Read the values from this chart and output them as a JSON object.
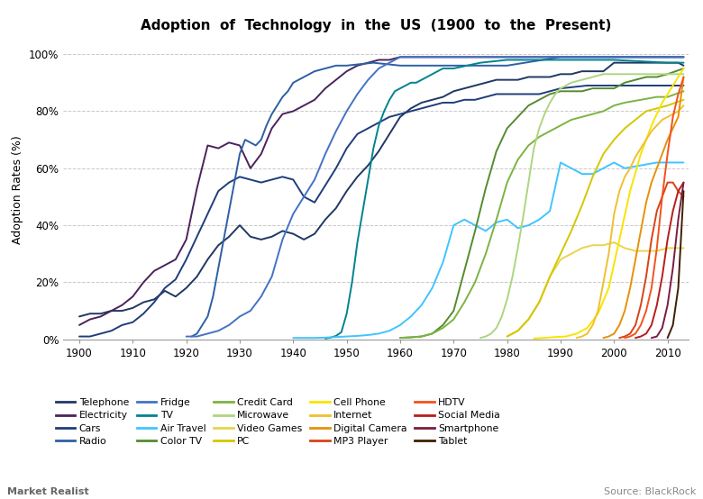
{
  "title": "Adoption  of  Technology  in  the  US  (1900  to  the  Present)",
  "ylabel": "Adoption Rates (%)",
  "xlim": [
    1897,
    2014
  ],
  "ylim": [
    0,
    1.05
  ],
  "yticks": [
    0,
    0.2,
    0.4,
    0.6,
    0.8,
    1.0
  ],
  "xticks": [
    1900,
    1910,
    1920,
    1930,
    1940,
    1950,
    1960,
    1970,
    1980,
    1990,
    2000,
    2010
  ],
  "background_color": "#ffffff",
  "grid_color": "#bbbbbb",
  "technologies": [
    {
      "name": "Telephone",
      "color": "#1f3864",
      "data_x": [
        1900,
        1902,
        1904,
        1906,
        1908,
        1910,
        1912,
        1914,
        1916,
        1918,
        1920,
        1922,
        1924,
        1926,
        1928,
        1930,
        1932,
        1934,
        1936,
        1938,
        1940,
        1942,
        1944,
        1946,
        1948,
        1950,
        1952,
        1954,
        1956,
        1958,
        1960,
        1962,
        1964,
        1966,
        1968,
        1970,
        1972,
        1974,
        1976,
        1978,
        1980,
        1982,
        1984,
        1986,
        1988,
        1990,
        1992,
        1994,
        1996,
        1998,
        2000,
        2002,
        2004,
        2006,
        2008,
        2010,
        2012,
        2013
      ],
      "data_y": [
        0.08,
        0.09,
        0.09,
        0.1,
        0.1,
        0.11,
        0.13,
        0.14,
        0.17,
        0.15,
        0.18,
        0.22,
        0.28,
        0.33,
        0.36,
        0.4,
        0.36,
        0.35,
        0.36,
        0.38,
        0.37,
        0.35,
        0.37,
        0.42,
        0.46,
        0.52,
        0.57,
        0.61,
        0.66,
        0.72,
        0.78,
        0.81,
        0.83,
        0.84,
        0.85,
        0.87,
        0.88,
        0.89,
        0.9,
        0.91,
        0.91,
        0.91,
        0.92,
        0.92,
        0.92,
        0.93,
        0.93,
        0.94,
        0.94,
        0.94,
        0.97,
        0.97,
        0.97,
        0.97,
        0.97,
        0.97,
        0.97,
        0.96
      ]
    },
    {
      "name": "Electricity",
      "color": "#4a235a",
      "data_x": [
        1900,
        1902,
        1904,
        1906,
        1908,
        1910,
        1912,
        1914,
        1916,
        1918,
        1920,
        1922,
        1924,
        1926,
        1928,
        1930,
        1932,
        1934,
        1936,
        1938,
        1940,
        1942,
        1944,
        1946,
        1948,
        1950,
        1952,
        1954,
        1956,
        1958,
        1960,
        1965,
        1970,
        1980,
        2013
      ],
      "data_y": [
        0.05,
        0.07,
        0.08,
        0.1,
        0.12,
        0.15,
        0.2,
        0.24,
        0.26,
        0.28,
        0.35,
        0.53,
        0.68,
        0.67,
        0.69,
        0.68,
        0.6,
        0.65,
        0.74,
        0.79,
        0.8,
        0.82,
        0.84,
        0.88,
        0.91,
        0.94,
        0.96,
        0.97,
        0.98,
        0.98,
        0.99,
        0.99,
        0.99,
        0.99,
        0.99
      ]
    },
    {
      "name": "Cars",
      "color": "#1f3d7a",
      "data_x": [
        1900,
        1902,
        1904,
        1906,
        1908,
        1910,
        1912,
        1914,
        1916,
        1918,
        1920,
        1922,
        1924,
        1926,
        1928,
        1930,
        1932,
        1934,
        1936,
        1938,
        1940,
        1942,
        1944,
        1946,
        1948,
        1950,
        1952,
        1954,
        1956,
        1958,
        1960,
        1962,
        1964,
        1966,
        1968,
        1970,
        1972,
        1974,
        1976,
        1978,
        1980,
        1982,
        1984,
        1986,
        1988,
        1990,
        1995,
        2000,
        2005,
        2010,
        2013
      ],
      "data_y": [
        0.01,
        0.01,
        0.02,
        0.03,
        0.05,
        0.06,
        0.09,
        0.13,
        0.18,
        0.21,
        0.28,
        0.36,
        0.44,
        0.52,
        0.55,
        0.57,
        0.56,
        0.55,
        0.56,
        0.57,
        0.56,
        0.5,
        0.48,
        0.54,
        0.6,
        0.67,
        0.72,
        0.74,
        0.76,
        0.78,
        0.79,
        0.8,
        0.81,
        0.82,
        0.83,
        0.83,
        0.84,
        0.84,
        0.85,
        0.86,
        0.86,
        0.86,
        0.86,
        0.86,
        0.87,
        0.88,
        0.89,
        0.89,
        0.89,
        0.89,
        0.89
      ]
    },
    {
      "name": "Radio",
      "color": "#2e5fa3",
      "data_x": [
        1921,
        1922,
        1923,
        1924,
        1925,
        1926,
        1927,
        1928,
        1929,
        1930,
        1931,
        1932,
        1933,
        1934,
        1935,
        1936,
        1937,
        1938,
        1939,
        1940,
        1942,
        1944,
        1946,
        1948,
        1950,
        1955,
        1960,
        1970,
        1980,
        1990,
        2000,
        2010,
        2013
      ],
      "data_y": [
        0.01,
        0.02,
        0.05,
        0.08,
        0.15,
        0.25,
        0.35,
        0.45,
        0.55,
        0.65,
        0.7,
        0.69,
        0.68,
        0.7,
        0.75,
        0.79,
        0.82,
        0.85,
        0.87,
        0.9,
        0.92,
        0.94,
        0.95,
        0.96,
        0.96,
        0.97,
        0.96,
        0.96,
        0.96,
        0.99,
        0.99,
        0.99,
        0.99
      ]
    },
    {
      "name": "Fridge",
      "color": "#4472c4",
      "data_x": [
        1920,
        1922,
        1924,
        1926,
        1928,
        1930,
        1932,
        1934,
        1936,
        1938,
        1940,
        1942,
        1944,
        1946,
        1948,
        1950,
        1952,
        1954,
        1956,
        1958,
        1960,
        1965,
        1970,
        1975,
        1980,
        1990,
        2000,
        2013
      ],
      "data_y": [
        0.01,
        0.01,
        0.02,
        0.03,
        0.05,
        0.08,
        0.1,
        0.15,
        0.22,
        0.35,
        0.44,
        0.5,
        0.56,
        0.65,
        0.73,
        0.8,
        0.86,
        0.91,
        0.95,
        0.97,
        0.99,
        0.99,
        0.99,
        0.99,
        0.99,
        0.99,
        0.99,
        0.99
      ]
    },
    {
      "name": "TV",
      "color": "#00838f",
      "data_x": [
        1946,
        1947,
        1948,
        1949,
        1950,
        1951,
        1952,
        1953,
        1954,
        1955,
        1956,
        1957,
        1958,
        1959,
        1960,
        1961,
        1962,
        1963,
        1964,
        1965,
        1966,
        1967,
        1968,
        1969,
        1970,
        1975,
        1980,
        1990,
        2000,
        2010,
        2013
      ],
      "data_y": [
        0.003,
        0.006,
        0.012,
        0.025,
        0.09,
        0.2,
        0.34,
        0.45,
        0.56,
        0.67,
        0.75,
        0.8,
        0.84,
        0.87,
        0.88,
        0.89,
        0.9,
        0.9,
        0.91,
        0.92,
        0.93,
        0.94,
        0.95,
        0.95,
        0.95,
        0.97,
        0.98,
        0.98,
        0.98,
        0.97,
        0.97
      ]
    },
    {
      "name": "Air Travel",
      "color": "#40c4ff",
      "data_x": [
        1940,
        1942,
        1944,
        1946,
        1948,
        1950,
        1952,
        1954,
        1956,
        1958,
        1960,
        1962,
        1964,
        1966,
        1968,
        1970,
        1972,
        1974,
        1976,
        1978,
        1980,
        1982,
        1984,
        1986,
        1988,
        1990,
        1992,
        1994,
        1996,
        1998,
        2000,
        2002,
        2005,
        2008,
        2010,
        2013
      ],
      "data_y": [
        0.005,
        0.005,
        0.005,
        0.006,
        0.008,
        0.01,
        0.012,
        0.015,
        0.02,
        0.03,
        0.05,
        0.08,
        0.12,
        0.18,
        0.27,
        0.4,
        0.42,
        0.4,
        0.38,
        0.41,
        0.42,
        0.39,
        0.4,
        0.42,
        0.45,
        0.62,
        0.6,
        0.58,
        0.58,
        0.6,
        0.62,
        0.6,
        0.61,
        0.62,
        0.62,
        0.62
      ]
    },
    {
      "name": "Color TV",
      "color": "#558b2f",
      "data_x": [
        1960,
        1962,
        1964,
        1966,
        1968,
        1970,
        1972,
        1974,
        1976,
        1978,
        1980,
        1982,
        1984,
        1986,
        1988,
        1990,
        1992,
        1994,
        1996,
        1998,
        2000,
        2002,
        2004,
        2006,
        2008,
        2010,
        2013
      ],
      "data_y": [
        0.005,
        0.007,
        0.01,
        0.02,
        0.05,
        0.1,
        0.24,
        0.38,
        0.53,
        0.66,
        0.74,
        0.78,
        0.82,
        0.84,
        0.86,
        0.87,
        0.87,
        0.87,
        0.88,
        0.88,
        0.88,
        0.9,
        0.91,
        0.92,
        0.92,
        0.93,
        0.95
      ]
    },
    {
      "name": "Credit Card",
      "color": "#7cb342",
      "data_x": [
        1960,
        1962,
        1964,
        1966,
        1968,
        1970,
        1972,
        1974,
        1976,
        1978,
        1980,
        1982,
        1984,
        1986,
        1988,
        1990,
        1992,
        1994,
        1996,
        1998,
        2000,
        2002,
        2005,
        2008,
        2010,
        2013
      ],
      "data_y": [
        0.005,
        0.007,
        0.01,
        0.02,
        0.04,
        0.07,
        0.13,
        0.2,
        0.3,
        0.42,
        0.55,
        0.63,
        0.68,
        0.71,
        0.73,
        0.75,
        0.77,
        0.78,
        0.79,
        0.8,
        0.82,
        0.83,
        0.84,
        0.85,
        0.85,
        0.87
      ]
    },
    {
      "name": "Microwave",
      "color": "#aed581",
      "data_x": [
        1975,
        1976,
        1977,
        1978,
        1979,
        1980,
        1981,
        1982,
        1983,
        1984,
        1985,
        1986,
        1987,
        1988,
        1989,
        1990,
        1992,
        1994,
        1996,
        1998,
        2000,
        2005,
        2010,
        2013
      ],
      "data_y": [
        0.005,
        0.01,
        0.02,
        0.04,
        0.08,
        0.14,
        0.22,
        0.32,
        0.43,
        0.55,
        0.67,
        0.74,
        0.79,
        0.83,
        0.86,
        0.88,
        0.9,
        0.91,
        0.92,
        0.93,
        0.93,
        0.93,
        0.93,
        0.93
      ]
    },
    {
      "name": "Video Games",
      "color": "#e8d44d",
      "data_x": [
        1980,
        1982,
        1984,
        1986,
        1988,
        1990,
        1992,
        1994,
        1996,
        1998,
        2000,
        2002,
        2004,
        2006,
        2008,
        2010,
        2013
      ],
      "data_y": [
        0.01,
        0.03,
        0.07,
        0.13,
        0.22,
        0.28,
        0.3,
        0.32,
        0.33,
        0.33,
        0.34,
        0.32,
        0.31,
        0.31,
        0.31,
        0.32,
        0.32
      ]
    },
    {
      "name": "PC",
      "color": "#d4c700",
      "data_x": [
        1980,
        1982,
        1984,
        1986,
        1988,
        1990,
        1992,
        1994,
        1996,
        1998,
        2000,
        2002,
        2004,
        2006,
        2008,
        2010,
        2013
      ],
      "data_y": [
        0.01,
        0.03,
        0.07,
        0.13,
        0.22,
        0.3,
        0.38,
        0.47,
        0.57,
        0.65,
        0.7,
        0.74,
        0.77,
        0.8,
        0.81,
        0.82,
        0.84
      ]
    },
    {
      "name": "Cell Phone",
      "color": "#f9e400",
      "data_x": [
        1985,
        1987,
        1989,
        1991,
        1993,
        1995,
        1997,
        1999,
        2001,
        2003,
        2005,
        2007,
        2009,
        2011,
        2013
      ],
      "data_y": [
        0.003,
        0.005,
        0.008,
        0.01,
        0.02,
        0.04,
        0.09,
        0.18,
        0.35,
        0.52,
        0.65,
        0.75,
        0.83,
        0.89,
        0.95
      ]
    },
    {
      "name": "Internet",
      "color": "#f0c030",
      "data_x": [
        1993,
        1994,
        1995,
        1996,
        1997,
        1998,
        1999,
        2000,
        2001,
        2002,
        2003,
        2004,
        2005,
        2006,
        2007,
        2008,
        2009,
        2010,
        2011,
        2012,
        2013
      ],
      "data_y": [
        0.005,
        0.01,
        0.02,
        0.05,
        0.1,
        0.2,
        0.3,
        0.44,
        0.52,
        0.57,
        0.6,
        0.64,
        0.67,
        0.7,
        0.73,
        0.75,
        0.77,
        0.78,
        0.79,
        0.8,
        0.82
      ]
    },
    {
      "name": "Digital Camera",
      "color": "#e6910a",
      "data_x": [
        1998,
        1999,
        2000,
        2001,
        2002,
        2003,
        2004,
        2005,
        2006,
        2007,
        2008,
        2009,
        2010,
        2011,
        2012,
        2013
      ],
      "data_y": [
        0.005,
        0.01,
        0.02,
        0.05,
        0.1,
        0.18,
        0.28,
        0.38,
        0.48,
        0.55,
        0.6,
        0.65,
        0.7,
        0.74,
        0.78,
        0.92
      ]
    },
    {
      "name": "MP3 Player",
      "color": "#d84315",
      "data_x": [
        2001,
        2002,
        2003,
        2004,
        2005,
        2006,
        2007,
        2008,
        2009,
        2010,
        2011,
        2012,
        2013
      ],
      "data_y": [
        0.005,
        0.01,
        0.02,
        0.05,
        0.12,
        0.22,
        0.35,
        0.45,
        0.5,
        0.55,
        0.55,
        0.52,
        0.5
      ]
    },
    {
      "name": "HDTV",
      "color": "#f4511e",
      "data_x": [
        2002,
        2003,
        2004,
        2005,
        2006,
        2007,
        2008,
        2009,
        2010,
        2011,
        2012,
        2013
      ],
      "data_y": [
        0.005,
        0.01,
        0.02,
        0.05,
        0.1,
        0.18,
        0.32,
        0.5,
        0.65,
        0.78,
        0.86,
        0.92
      ]
    },
    {
      "name": "Social Media",
      "color": "#b71c1c",
      "data_x": [
        2004,
        2005,
        2006,
        2007,
        2008,
        2009,
        2010,
        2011,
        2012,
        2013
      ],
      "data_y": [
        0.005,
        0.01,
        0.02,
        0.05,
        0.12,
        0.22,
        0.35,
        0.45,
        0.52,
        0.55
      ]
    },
    {
      "name": "Smartphone",
      "color": "#7b1c3e",
      "data_x": [
        2007,
        2008,
        2009,
        2010,
        2011,
        2012,
        2013
      ],
      "data_y": [
        0.005,
        0.01,
        0.04,
        0.12,
        0.25,
        0.42,
        0.55
      ]
    },
    {
      "name": "Tablet",
      "color": "#3e1f00",
      "data_x": [
        2010,
        2011,
        2012,
        2013
      ],
      "data_y": [
        0.005,
        0.05,
        0.18,
        0.52
      ]
    }
  ],
  "legend_rows": [
    [
      "Telephone",
      "Electricity",
      "Cars",
      "Radio",
      "Fridge"
    ],
    [
      "TV",
      "Air Travel",
      "Color TV",
      "Credit Card",
      "Microwave"
    ],
    [
      "Video Games",
      "PC",
      "Cell Phone",
      "Internet",
      "Digital Camera"
    ],
    [
      "MP3 Player",
      "HDTV",
      "Social Media",
      "Smartphone",
      "Tablet"
    ]
  ],
  "footer_left": "Market Realist",
  "footer_right": "Source: BlackRock"
}
